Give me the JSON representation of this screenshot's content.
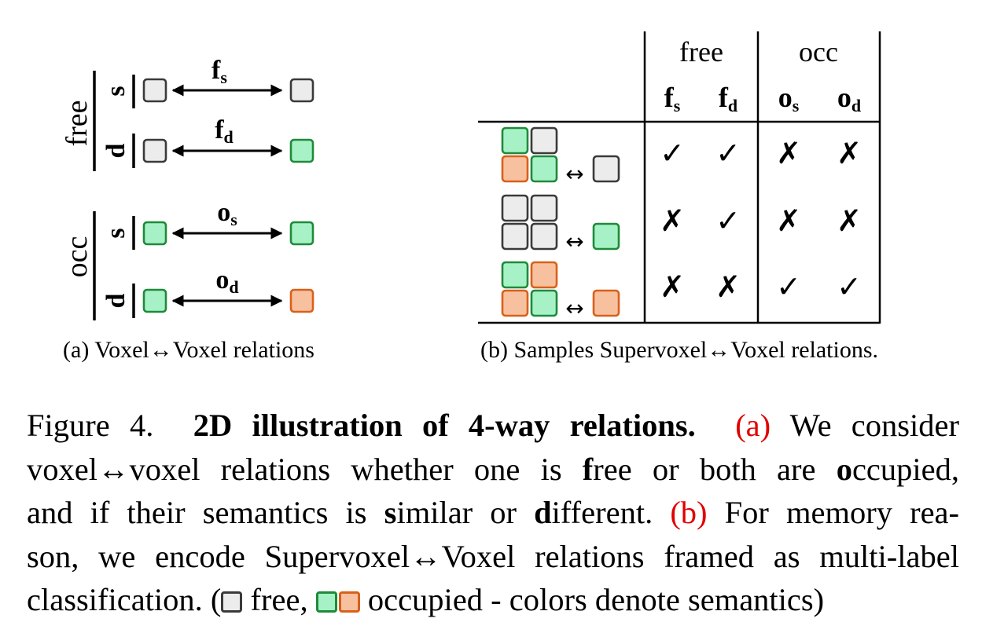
{
  "panel_a": {
    "group_free": "free",
    "group_occ": "occ",
    "row_s": "s",
    "row_d": "d",
    "rel_fs": {
      "base": "f",
      "sub": "s"
    },
    "rel_fd": {
      "base": "f",
      "sub": "d"
    },
    "rel_os": {
      "base": "o",
      "sub": "s"
    },
    "rel_od": {
      "base": "o",
      "sub": "d"
    },
    "caption": "(a) Voxel↔Voxel relations"
  },
  "panel_b": {
    "col_group_free": "free",
    "col_group_occ": "occ",
    "col_fs": {
      "base": "f",
      "sub": "s"
    },
    "col_fd": {
      "base": "f",
      "sub": "d"
    },
    "col_os": {
      "base": "o",
      "sub": "s"
    },
    "col_od": {
      "base": "o",
      "sub": "d"
    },
    "arrow": "↔",
    "check": "✓",
    "cross": "✗",
    "rows": [
      {
        "values": [
          true,
          true,
          false,
          false
        ]
      },
      {
        "values": [
          false,
          true,
          false,
          false
        ]
      },
      {
        "values": [
          false,
          false,
          true,
          true
        ]
      }
    ],
    "caption": "(b) Samples Supervoxel↔Voxel relations."
  },
  "colors": {
    "free_fill": "#ececec",
    "free_stroke": "#3a3a3a",
    "green_fill": "#a6f2c6",
    "green_stroke": "#1f8a3a",
    "orange_fill": "#f7c1a0",
    "orange_stroke": "#d9601a",
    "caption_ref": "#e00000"
  },
  "caption": {
    "figure_label": "Figure 4.",
    "title": "2D illustration of 4-way relations.",
    "ref_a": "(a)",
    "l1_tail": "We consider",
    "l2_a": "voxel↔voxel relations whether one is ",
    "l2_f": "f",
    "l2_b": "ree or both are ",
    "l2_o": "o",
    "l2_c": "ccupied,",
    "l3_a": "and if their semantics is ",
    "l3_s": "s",
    "l3_b": "imilar or ",
    "l3_d": "d",
    "l3_c": "ifferent.",
    "ref_b": "(b)",
    "l3_tail": "For memory rea-",
    "l4": "son, we encode Supervoxel↔Voxel relations framed as multi-label",
    "l5_a": "classification. (",
    "l5_free": "free,",
    "l5_occ": "occupied - colors denote semantics)"
  }
}
